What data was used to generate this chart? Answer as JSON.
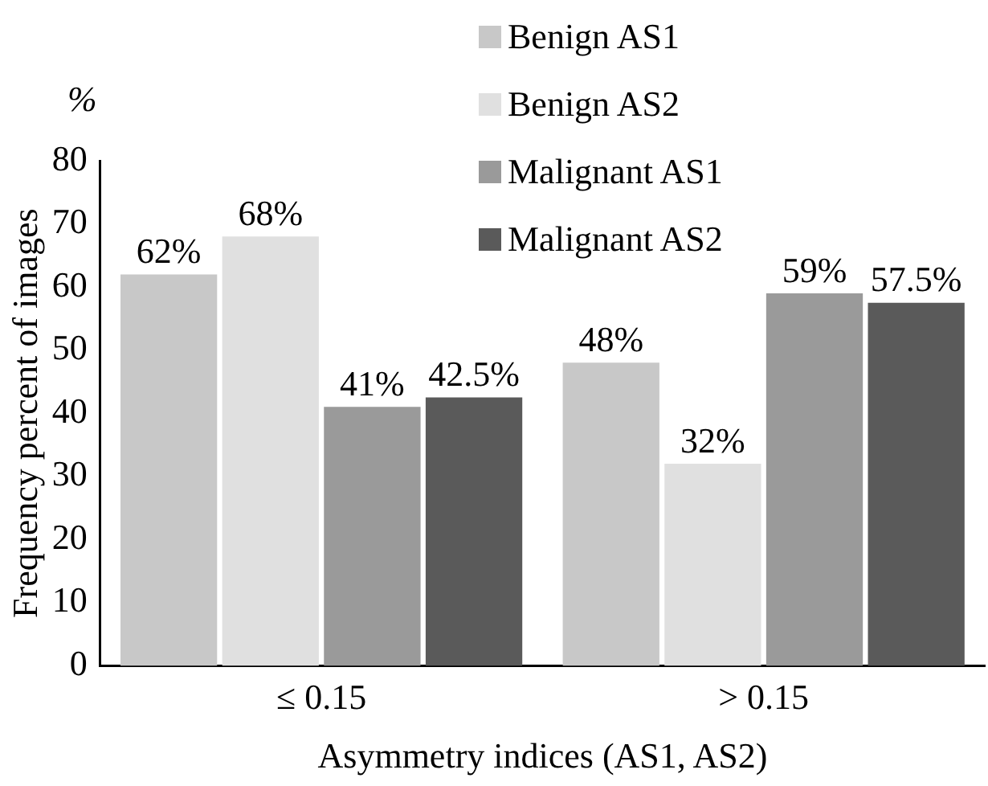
{
  "chart_data": {
    "type": "bar",
    "categories": [
      "≤ 0.15",
      "> 0.15"
    ],
    "series": [
      {
        "name": "Benign AS1",
        "color": "#c8c8c8",
        "values": [
          62,
          48
        ],
        "value_labels": [
          "62%",
          "48%"
        ]
      },
      {
        "name": "Benign AS2",
        "color": "#e0e0e0",
        "values": [
          68,
          32
        ],
        "value_labels": [
          "68%",
          "32%"
        ]
      },
      {
        "name": "Malignant AS1",
        "color": "#9a9a9a",
        "values": [
          41,
          59
        ],
        "value_labels": [
          "41%",
          "59%"
        ]
      },
      {
        "name": "Malignant AS2",
        "color": "#5a5a5a",
        "values": [
          42.5,
          57.5
        ],
        "value_labels": [
          "42.5%",
          "57.5%"
        ]
      }
    ],
    "xlabel": "Asymmetry indices (AS1, AS2)",
    "ylabel": "Frequency percent of images",
    "annotations": [
      "%"
    ],
    "ylim": [
      0,
      80
    ],
    "yticks": [
      0,
      10,
      20,
      30,
      40,
      50,
      60,
      70,
      80
    ],
    "grid": false,
    "legend": "top right"
  }
}
